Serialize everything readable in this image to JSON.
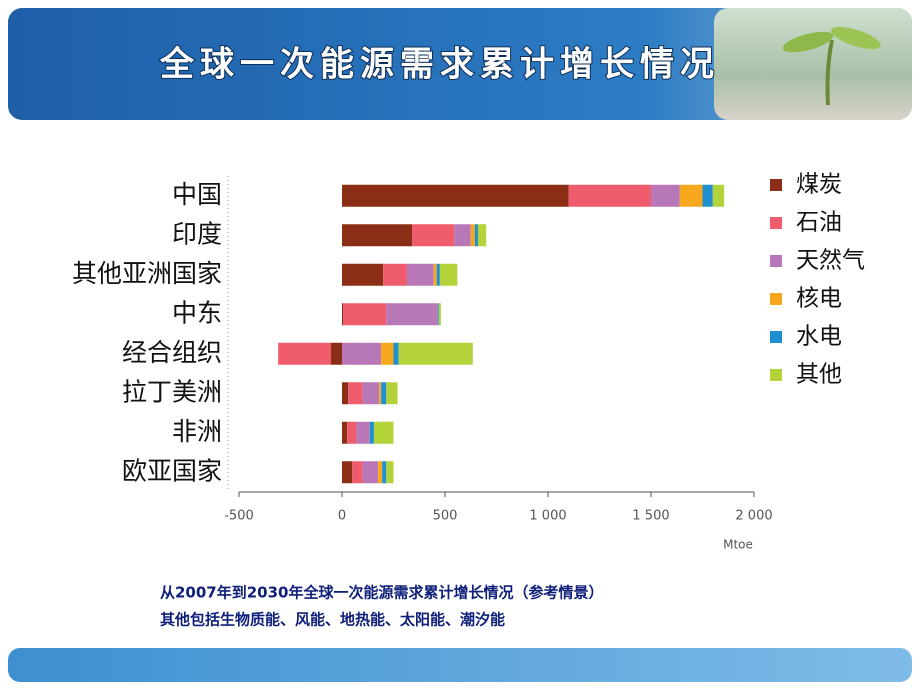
{
  "chart_data": {
    "type": "stacked-bar-horizontal",
    "title": "全球一次能源需求累计增长情况",
    "categories": [
      "中国",
      "印度",
      "其他亚洲国家",
      "中东",
      "经合组织",
      "拉丁美洲",
      "非洲",
      "欧亚国家"
    ],
    "series": [
      {
        "name": "煤炭",
        "color": "#8b2e16",
        "values": [
          1100,
          340,
          200,
          5,
          -55,
          30,
          25,
          50
        ]
      },
      {
        "name": "石油",
        "color": "#ef5c6b",
        "values": [
          400,
          205,
          115,
          210,
          -255,
          70,
          45,
          50
        ]
      },
      {
        "name": "天然气",
        "color": "#b878b8",
        "values": [
          140,
          80,
          130,
          250,
          190,
          80,
          65,
          75
        ]
      },
      {
        "name": "核电",
        "color": "#f5a81c",
        "values": [
          110,
          20,
          15,
          0,
          60,
          10,
          0,
          20
        ]
      },
      {
        "name": "水电",
        "color": "#1f8fd0",
        "values": [
          50,
          15,
          15,
          5,
          25,
          25,
          20,
          20
        ]
      },
      {
        "name": "其他",
        "color": "#b4d23a",
        "values": [
          55,
          40,
          85,
          10,
          360,
          55,
          95,
          35
        ]
      }
    ],
    "xlim": [
      -500,
      2000
    ],
    "xticks": [
      -500,
      0,
      500,
      {
        "value": 1000,
        "label": "1 000"
      },
      {
        "value": 1500,
        "label": "1 500"
      },
      {
        "value": 2000,
        "label": "2 000"
      }
    ],
    "xlabel": "Mtoe",
    "legend": "right",
    "annotations": [
      "从2007年到2030年全球一次能源需求累计增长情况（参考情景）",
      "其他包括生物质能、风能、地热能、太阳能、潮汐能"
    ]
  }
}
